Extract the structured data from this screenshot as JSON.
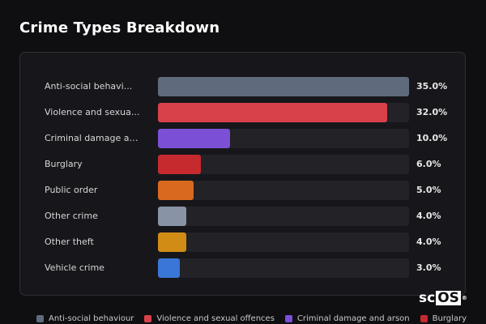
{
  "chart_data": {
    "type": "bar",
    "orientation": "horizontal",
    "title": "Crime Types Breakdown",
    "categories": [
      "Anti-social behavi...",
      "Violence and sexua...",
      "Criminal damage an...",
      "Burglary",
      "Public order",
      "Other crime",
      "Other theft",
      "Vehicle crime"
    ],
    "values": [
      35.0,
      32.0,
      10.0,
      6.0,
      5.0,
      4.0,
      4.0,
      3.0
    ],
    "value_labels": [
      "35.0%",
      "32.0%",
      "10.0%",
      "6.0%",
      "5.0%",
      "4.0%",
      "4.0%",
      "3.0%"
    ],
    "colors": [
      "#5f6b7c",
      "#d9414a",
      "#7b4fd6",
      "#c62a2f",
      "#d9691f",
      "#8893a6",
      "#d08c15",
      "#3a76d6"
    ],
    "xlim": [
      0,
      35
    ],
    "grid": false,
    "legend": {
      "placement": "bottom",
      "entries": [
        {
          "label": "Anti-social behaviour",
          "color": "#5f6b7c"
        },
        {
          "label": "Violence and sexual offences",
          "color": "#d9414a"
        },
        {
          "label": "Criminal damage and arson",
          "color": "#7b4fd6"
        },
        {
          "label": "Burglary",
          "color": "#c62a2f"
        }
      ]
    }
  },
  "logo": {
    "prefix": "sc",
    "boxed": "OS",
    "mark": "®"
  }
}
